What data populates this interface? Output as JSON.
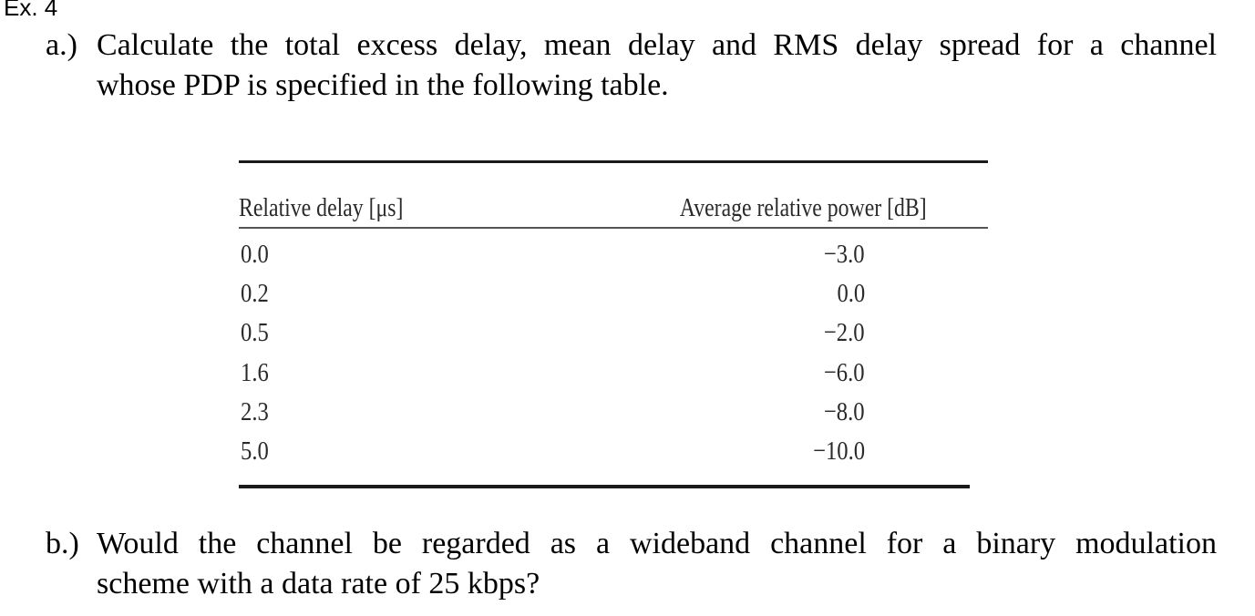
{
  "exercise": {
    "heading": "Ex. 4"
  },
  "question_a": {
    "label": "a.)",
    "line1": "Calculate the total excess delay, mean delay and RMS delay spread for a channel",
    "line2": "whose PDP is specified in the following table."
  },
  "table": {
    "headers": [
      "Relative delay [μs]",
      "Average relative power [dB]"
    ],
    "rows": [
      {
        "delay": "0.0",
        "power": "−3.0"
      },
      {
        "delay": "0.2",
        "power": "0.0"
      },
      {
        "delay": "0.5",
        "power": "−2.0"
      },
      {
        "delay": "1.6",
        "power": "−6.0"
      },
      {
        "delay": "2.3",
        "power": "−8.0"
      },
      {
        "delay": "5.0",
        "power": "−10.0"
      }
    ]
  },
  "question_b": {
    "label": "b.)",
    "line1": "Would the channel be regarded as a wideband channel for a binary modulation",
    "line2": "scheme with a data rate of 25 kbps?"
  }
}
